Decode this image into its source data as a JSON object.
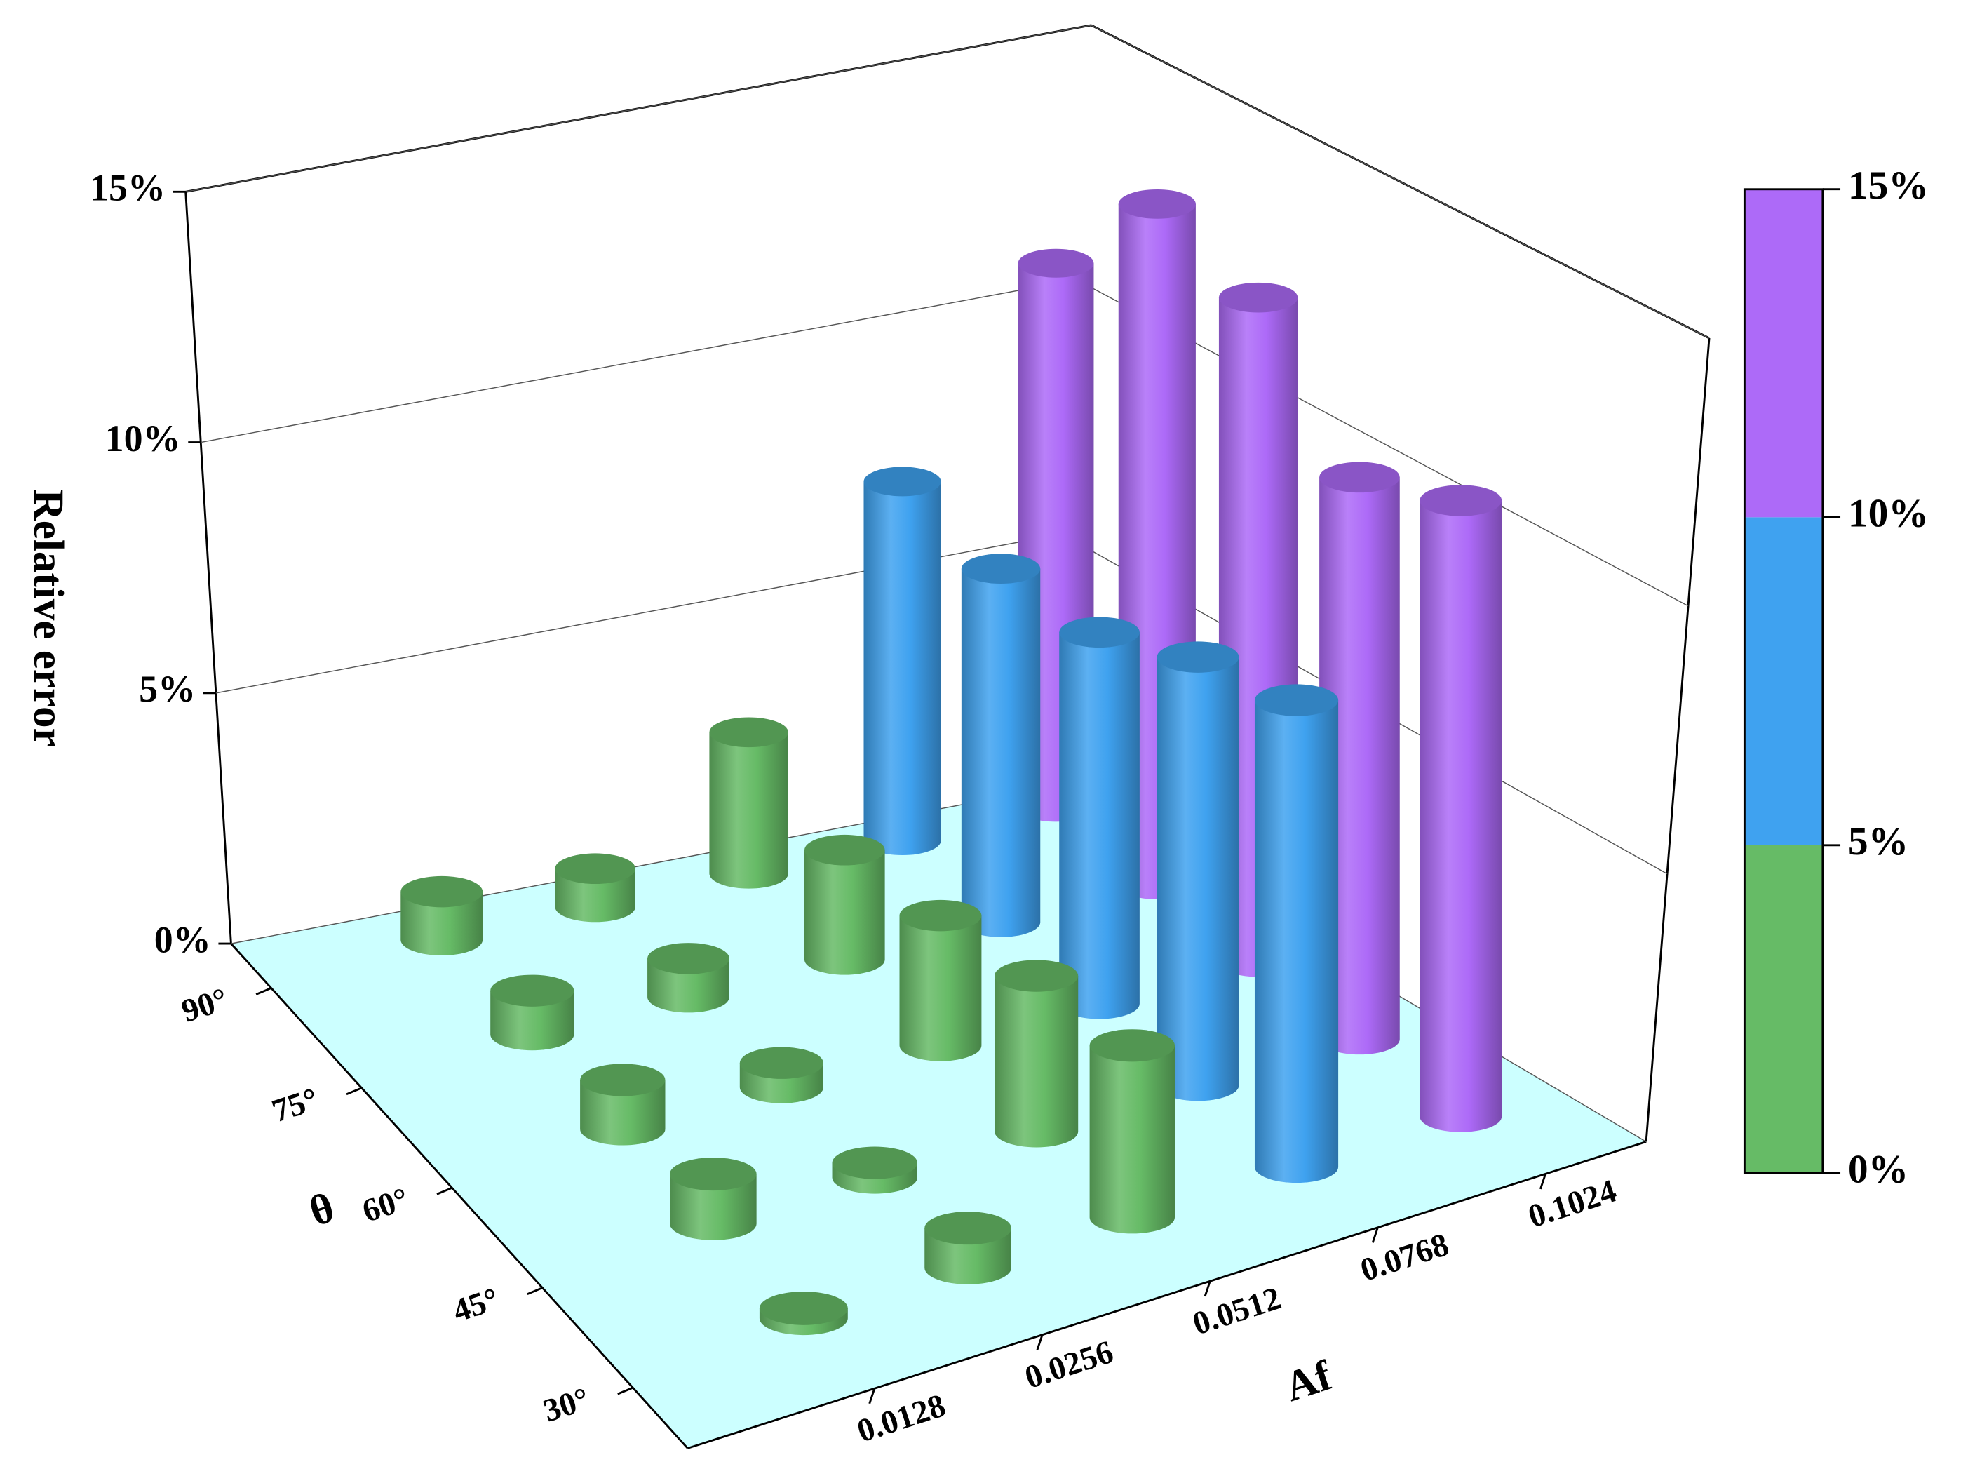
{
  "chart_data": {
    "type": "bar3d",
    "x_label": "Af",
    "y_label": "θ",
    "z_label": "Relative error",
    "x_categories": [
      "0.0128",
      "0.0256",
      "0.0512",
      "0.0768",
      "0.1024"
    ],
    "y_categories": [
      "30°",
      "45°",
      "60°",
      "75°",
      "90°"
    ],
    "values": [
      [
        0.2,
        0.8,
        3.5,
        9.6,
        12.8
      ],
      [
        1.0,
        0.3,
        3.2,
        8.9,
        11.8
      ],
      [
        1.0,
        0.5,
        2.7,
        7.8,
        14.1
      ],
      [
        0.9,
        0.8,
        2.3,
        7.5,
        14.6
      ],
      [
        1.0,
        0.8,
        3.0,
        7.7,
        11.8
      ]
    ],
    "zlim": [
      0,
      15
    ],
    "zticks": [
      {
        "value": 0,
        "label": "0%"
      },
      {
        "value": 5,
        "label": "5%"
      },
      {
        "value": 10,
        "label": "10%"
      },
      {
        "value": 15,
        "label": "15%"
      }
    ],
    "grid": true,
    "colorbar": {
      "levels": [
        {
          "value": 0,
          "label": "0%"
        },
        {
          "value": 5,
          "label": "5%"
        },
        {
          "value": 10,
          "label": "10%"
        },
        {
          "value": 15,
          "label": "15%"
        }
      ],
      "colors": [
        "#66bb66",
        "#3fa2f0",
        "#ad6af8"
      ]
    },
    "floor_color": "#ccffff"
  }
}
